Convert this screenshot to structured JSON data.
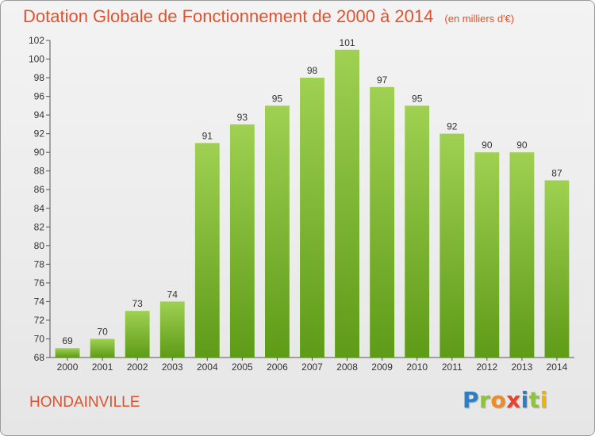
{
  "header": {
    "title": "Dotation Globale de Fonctionnement de 2000 à 2014",
    "unit": "(en milliers d'€)"
  },
  "footer": {
    "commune": "HONDAINVILLE",
    "brand_letters": [
      {
        "char": "P",
        "color": "#2b7fc2"
      },
      {
        "char": "r",
        "color": "#8cc43a"
      },
      {
        "char": "o",
        "color": "#f08a24"
      },
      {
        "char": "x",
        "color": "#e8412c"
      },
      {
        "char": "i",
        "color": "#2b7fc2"
      },
      {
        "char": "t",
        "color": "#8cc43a"
      },
      {
        "char": "i",
        "color": "#f0b400"
      }
    ]
  },
  "colors": {
    "bar_top": "#9fd052",
    "bar_bottom": "#5e9b17",
    "accent": "#e0522e"
  },
  "chart_data": {
    "type": "bar",
    "categories": [
      "2000",
      "2001",
      "2002",
      "2003",
      "2004",
      "2005",
      "2006",
      "2007",
      "2008",
      "2009",
      "2010",
      "2011",
      "2012",
      "2013",
      "2014"
    ],
    "values": [
      69,
      70,
      73,
      74,
      91,
      93,
      95,
      98,
      101,
      97,
      95,
      92,
      90,
      90,
      87
    ],
    "ylim": [
      68,
      102
    ],
    "yticks": [
      68,
      70,
      72,
      74,
      76,
      78,
      80,
      82,
      84,
      86,
      88,
      90,
      92,
      94,
      96,
      98,
      100,
      102
    ],
    "grid": false,
    "legend": "none"
  }
}
